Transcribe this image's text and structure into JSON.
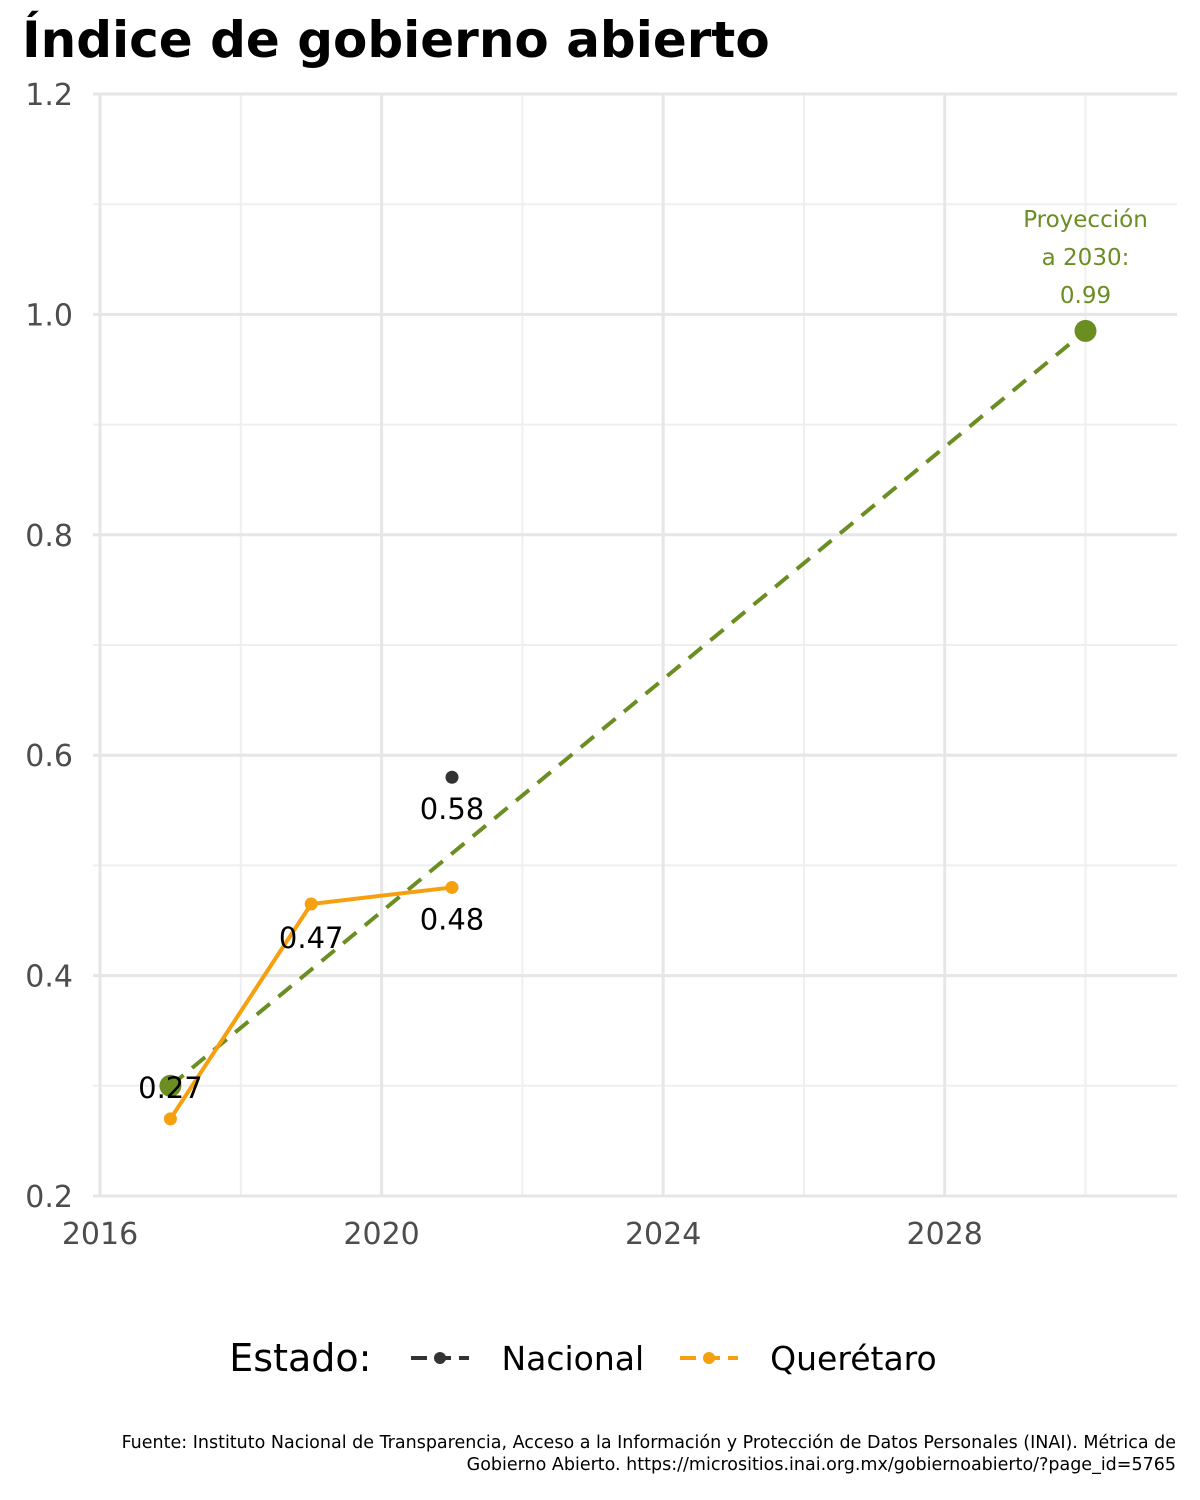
{
  "chart_data": {
    "type": "line",
    "title": "Índice de gobierno abierto",
    "xlabel": "",
    "ylabel": "",
    "xlim": [
      2015.9,
      2031.3
    ],
    "ylim": [
      0.2,
      1.2
    ],
    "x_ticks": [
      "2016",
      "2020",
      "2024",
      "2028"
    ],
    "x_tick_values": [
      2016,
      2020,
      2024,
      2028
    ],
    "y_ticks": [
      "0.2",
      "0.4",
      "0.6",
      "0.8",
      "1.0",
      "1.2"
    ],
    "y_tick_values": [
      0.2,
      0.4,
      0.6,
      0.8,
      1.0,
      1.2
    ],
    "grid": true,
    "legend": {
      "title": "Estado:",
      "position": "bottom",
      "items": [
        {
          "name": "Nacional",
          "color": "#333333"
        },
        {
          "name": "Querétaro",
          "color": "#f5a00f"
        }
      ]
    },
    "series": [
      {
        "name": "Nacional",
        "color": "#333333",
        "x": [
          2021
        ],
        "values": [
          0.58
        ],
        "labels": [
          "0.58"
        ]
      },
      {
        "name": "Querétaro",
        "color": "#f5a00f",
        "x": [
          2017,
          2019,
          2021
        ],
        "values": [
          0.27,
          0.465,
          0.48
        ],
        "labels": [
          "0.27",
          "0.47",
          "0.48"
        ]
      }
    ],
    "projection": {
      "color": "#6b8e23",
      "line_style": "dashed",
      "x": [
        2017,
        2030
      ],
      "values": [
        0.3,
        0.985
      ],
      "annotation": [
        "Proyección",
        "a 2030:",
        "0.99"
      ]
    }
  },
  "caption": {
    "line1": "Fuente: Instituto Nacional de Transparencia, Acceso a la Información y Protección de Datos Personales (INAI). Métrica de",
    "line2": "Gobierno Abierto. https://micrositios.inai.org.mx/gobiernoabierto/?page_id=5765"
  },
  "colors": {
    "grid_major": "#e6e6e6",
    "grid_minor": "#efefef",
    "axis_text": "#4d4d4d"
  }
}
